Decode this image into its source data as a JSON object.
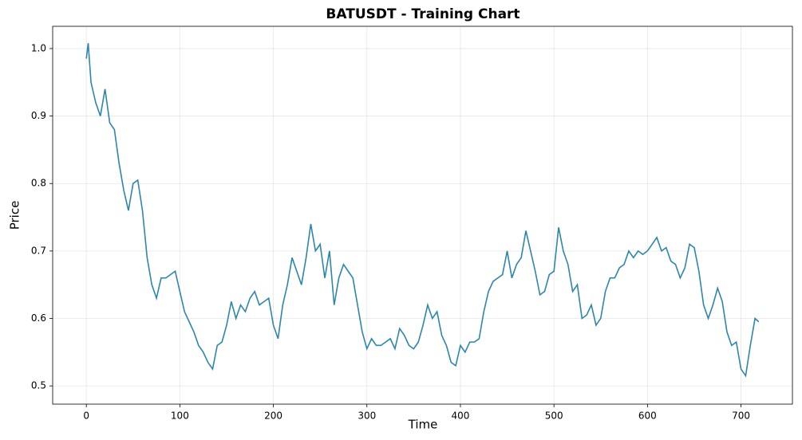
{
  "chart_data": {
    "type": "line",
    "title": "BATUSDT - Training Chart",
    "xlabel": "Time",
    "ylabel": "Price",
    "x": [
      0,
      2,
      5,
      10,
      15,
      20,
      25,
      30,
      35,
      40,
      45,
      50,
      55,
      60,
      65,
      70,
      75,
      80,
      85,
      90,
      95,
      100,
      105,
      110,
      115,
      120,
      125,
      130,
      135,
      140,
      145,
      150,
      155,
      160,
      165,
      170,
      175,
      180,
      185,
      190,
      195,
      200,
      205,
      210,
      215,
      220,
      225,
      230,
      235,
      240,
      245,
      250,
      255,
      260,
      265,
      270,
      275,
      280,
      285,
      290,
      295,
      300,
      305,
      310,
      315,
      320,
      325,
      330,
      335,
      340,
      345,
      350,
      355,
      360,
      365,
      370,
      375,
      380,
      385,
      390,
      395,
      400,
      405,
      410,
      415,
      420,
      425,
      430,
      435,
      440,
      445,
      450,
      455,
      460,
      465,
      470,
      475,
      480,
      485,
      490,
      495,
      500,
      505,
      510,
      515,
      520,
      525,
      530,
      535,
      540,
      545,
      550,
      555,
      560,
      565,
      570,
      575,
      580,
      585,
      590,
      595,
      600,
      605,
      610,
      615,
      620,
      625,
      630,
      635,
      640,
      645,
      650,
      655,
      660,
      665,
      670,
      675,
      680,
      685,
      690,
      695,
      700,
      705,
      710,
      715,
      719
    ],
    "series": [
      {
        "name": "BATUSDT",
        "color": "#2e86ab",
        "values": [
          0.985,
          1.008,
          0.95,
          0.92,
          0.9,
          0.94,
          0.89,
          0.88,
          0.83,
          0.79,
          0.76,
          0.8,
          0.805,
          0.76,
          0.69,
          0.65,
          0.63,
          0.66,
          0.66,
          0.665,
          0.67,
          0.64,
          0.61,
          0.595,
          0.58,
          0.56,
          0.55,
          0.535,
          0.525,
          0.56,
          0.565,
          0.59,
          0.625,
          0.6,
          0.62,
          0.61,
          0.63,
          0.64,
          0.62,
          0.625,
          0.63,
          0.59,
          0.57,
          0.62,
          0.65,
          0.69,
          0.67,
          0.65,
          0.69,
          0.74,
          0.7,
          0.71,
          0.66,
          0.7,
          0.62,
          0.66,
          0.68,
          0.67,
          0.66,
          0.62,
          0.58,
          0.555,
          0.57,
          0.56,
          0.56,
          0.565,
          0.57,
          0.555,
          0.585,
          0.575,
          0.56,
          0.555,
          0.565,
          0.59,
          0.62,
          0.6,
          0.61,
          0.575,
          0.56,
          0.535,
          0.53,
          0.56,
          0.55,
          0.565,
          0.565,
          0.57,
          0.61,
          0.64,
          0.655,
          0.66,
          0.665,
          0.7,
          0.66,
          0.68,
          0.69,
          0.73,
          0.7,
          0.67,
          0.635,
          0.64,
          0.665,
          0.67,
          0.735,
          0.7,
          0.68,
          0.64,
          0.65,
          0.6,
          0.605,
          0.62,
          0.59,
          0.6,
          0.64,
          0.66,
          0.66,
          0.675,
          0.68,
          0.7,
          0.69,
          0.7,
          0.695,
          0.7,
          0.71,
          0.72,
          0.7,
          0.705,
          0.685,
          0.68,
          0.66,
          0.675,
          0.71,
          0.705,
          0.67,
          0.62,
          0.6,
          0.62,
          0.645,
          0.625,
          0.58,
          0.56,
          0.565,
          0.525,
          0.515,
          0.56,
          0.6,
          0.595
        ]
      }
    ],
    "xlim": [
      -36,
      755
    ],
    "ylim": [
      0.473,
      1.033
    ],
    "xticks": [
      0,
      100,
      200,
      300,
      400,
      500,
      600,
      700
    ],
    "yticks": [
      0.5,
      0.6,
      0.7,
      0.8,
      0.9,
      {
        "value": 1,
        "label": "1.0"
      }
    ],
    "grid": true
  }
}
